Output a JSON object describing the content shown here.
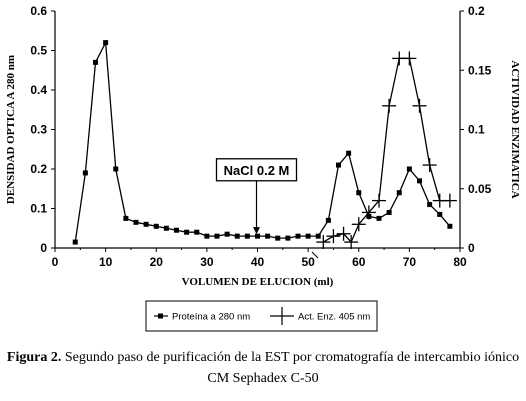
{
  "chart_data": {
    "type": "line",
    "x_axis": {
      "label": "VOLUMEN DE ELUCION (ml)",
      "lim": [
        0,
        80
      ],
      "ticks": [
        "0",
        "10",
        "20",
        "30",
        "40",
        "50",
        "60",
        "70",
        "80"
      ],
      "tick_values": [
        0,
        10,
        20,
        30,
        40,
        50,
        60,
        70,
        80
      ]
    },
    "y_axis_left": {
      "label": "DENSIDAD OPTICA A 280 nm",
      "lim": [
        0,
        0.6
      ],
      "ticks": [
        "0",
        "0.1",
        "0.2",
        "0.3",
        "0.4",
        "0.5",
        "0.6"
      ],
      "tick_values": [
        0,
        0.1,
        0.2,
        0.3,
        0.4,
        0.5,
        0.6
      ]
    },
    "y_axis_right": {
      "label": "ACTIVIDAD ENZIMATICA",
      "lim": [
        0,
        0.2
      ],
      "ticks": [
        "0",
        "0.05",
        "0.1",
        "0.15",
        "0.2"
      ],
      "tick_values": [
        0,
        0.05,
        0.1,
        0.15,
        0.2
      ]
    },
    "series": [
      {
        "name": "Proteína a 280 nm",
        "axis": "left",
        "marker": "square",
        "x": [
          4,
          6,
          8,
          10,
          12,
          14,
          16,
          18,
          20,
          22,
          24,
          26,
          28,
          30,
          32,
          34,
          36,
          38,
          40,
          42,
          44,
          46,
          48,
          50,
          52,
          54,
          56,
          58,
          60,
          62,
          64,
          66,
          68,
          70,
          72,
          74,
          76,
          78
        ],
        "values": [
          0.015,
          0.19,
          0.47,
          0.52,
          0.2,
          0.075,
          0.065,
          0.06,
          0.055,
          0.05,
          0.045,
          0.04,
          0.04,
          0.03,
          0.03,
          0.035,
          0.03,
          0.03,
          0.03,
          0.03,
          0.025,
          0.025,
          0.03,
          0.03,
          0.03,
          0.07,
          0.21,
          0.24,
          0.14,
          0.08,
          0.075,
          0.09,
          0.14,
          0.2,
          0.17,
          0.11,
          0.085,
          0.055
        ]
      },
      {
        "name": "Act. Enz. 405 nm",
        "axis": "right",
        "marker": "plus",
        "x": [
          53,
          55,
          57,
          58.5,
          60,
          62,
          64,
          66,
          68,
          70,
          72,
          74,
          76,
          78
        ],
        "values": [
          0.005,
          0.01,
          0.012,
          0.005,
          0.02,
          0.03,
          0.04,
          0.12,
          0.16,
          0.16,
          0.12,
          0.07,
          0.04,
          0.04
        ]
      }
    ],
    "annotation": {
      "text": "NaCl 0.2 M",
      "x": 40,
      "arrow_tip_y": 0.035,
      "arrow_base_y": 0.155
    },
    "legend": {
      "placement": "bottom-center"
    }
  },
  "caption": {
    "bold": "Figura 2.",
    "text": " Segundo paso de purificación de la EST por cromatografía de intercambio iónico CM Sephadex C-50"
  }
}
